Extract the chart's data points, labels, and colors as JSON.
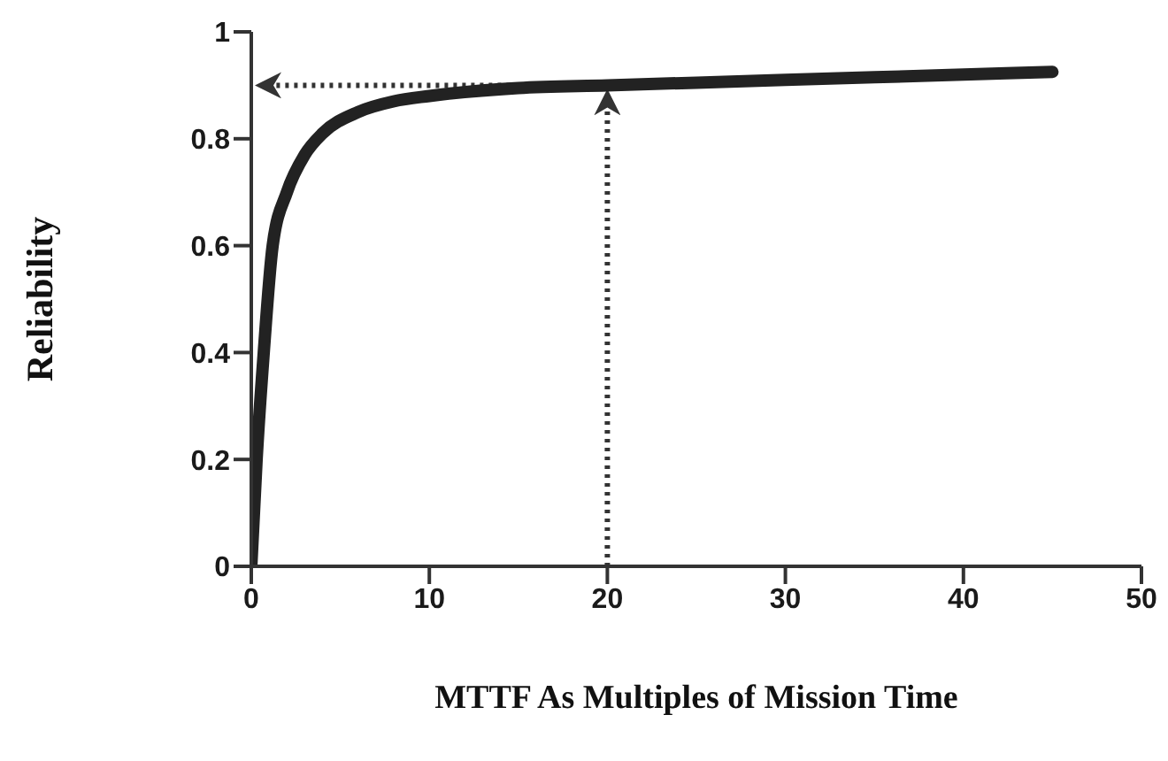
{
  "chart_data": {
    "type": "line",
    "xlabel": "MTTF As Multiples of Mission Time",
    "ylabel": "Reliability",
    "x": [
      0,
      0.3,
      0.7,
      1.2,
      2,
      3,
      4,
      6,
      8,
      10,
      15,
      20,
      30,
      40,
      45
    ],
    "series": [
      {
        "color": "#222222",
        "values": [
          0,
          0.2,
          0.4,
          0.6,
          0.7,
          0.77,
          0.81,
          0.85,
          0.87,
          0.88,
          0.895,
          0.9,
          0.91,
          0.92,
          0.925
        ]
      }
    ],
    "xlim": [
      0,
      50
    ],
    "xticks": [
      0,
      10,
      20,
      30,
      40,
      50
    ],
    "ylim": [
      0,
      1
    ],
    "yticks": [
      0,
      0.2,
      0.4,
      0.6,
      0.8,
      1
    ],
    "grid": false,
    "legend": false,
    "marker": "none",
    "line_style": "solid",
    "ref_lines": [
      {
        "axis": "x",
        "value": 20,
        "line_style": "dotted",
        "color": "#333333"
      },
      {
        "axis": "y",
        "value": 0.9,
        "line_style": "dotted",
        "color": "#333333"
      }
    ]
  }
}
